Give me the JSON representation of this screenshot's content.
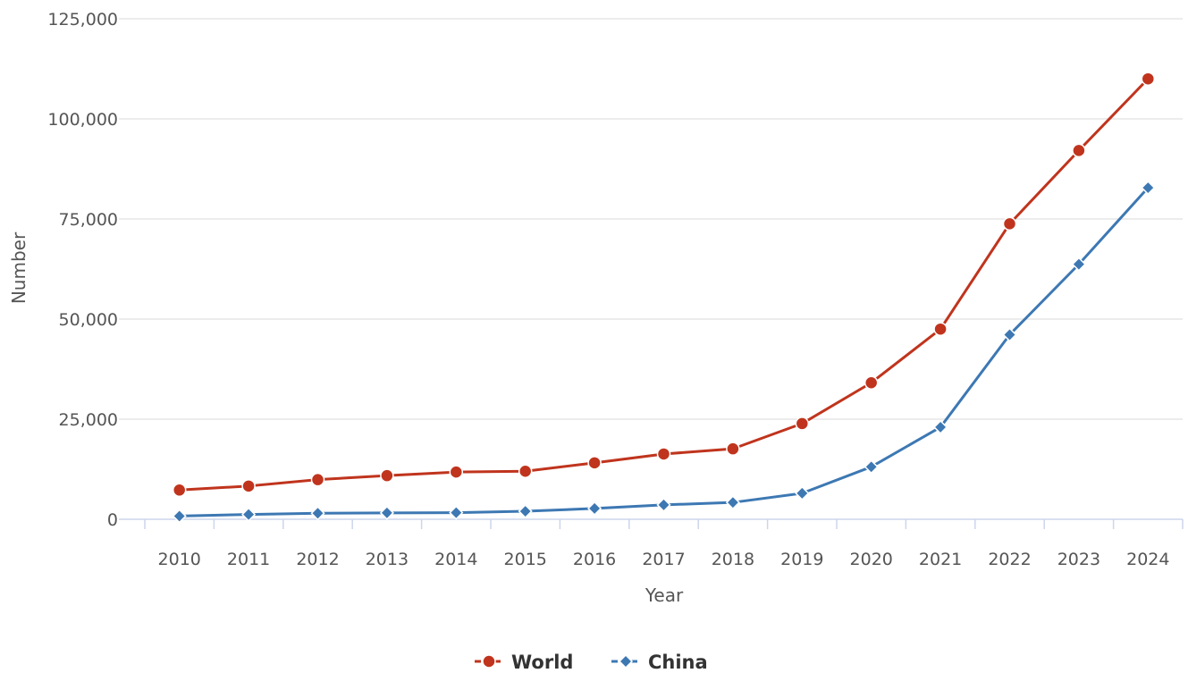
{
  "chart_data": {
    "type": "line",
    "title": "",
    "xlabel": "Year",
    "ylabel": "Number",
    "x": [
      2010,
      2011,
      2012,
      2013,
      2014,
      2015,
      2016,
      2017,
      2018,
      2019,
      2020,
      2021,
      2022,
      2023,
      2024
    ],
    "x_tick_labels": [
      "2010",
      "2011",
      "2012",
      "2013",
      "2014",
      "2015",
      "2016",
      "2017",
      "2018",
      "2019",
      "2020",
      "2021",
      "2022",
      "2023",
      "2024"
    ],
    "ylim": [
      0,
      125000
    ],
    "y_ticks": [
      0,
      25000,
      50000,
      75000,
      100000,
      125000
    ],
    "y_tick_labels": [
      "0",
      "25,000",
      "50,000",
      "75,000",
      "100,000",
      "125,000"
    ],
    "grid": true,
    "legend_position": "bottom-center",
    "series": [
      {
        "name": "World",
        "color": "#c0341d",
        "marker": "circle",
        "values": [
          7300,
          8300,
          9900,
          10900,
          11800,
          12000,
          14100,
          16300,
          17600,
          23900,
          34100,
          47500,
          73800,
          92100,
          110000
        ]
      },
      {
        "name": "China",
        "color": "#3d78b3",
        "marker": "diamond",
        "values": [
          800,
          1200,
          1500,
          1600,
          1650,
          2000,
          2700,
          3600,
          4200,
          6500,
          13100,
          23000,
          46100,
          63700,
          82800
        ]
      }
    ]
  }
}
